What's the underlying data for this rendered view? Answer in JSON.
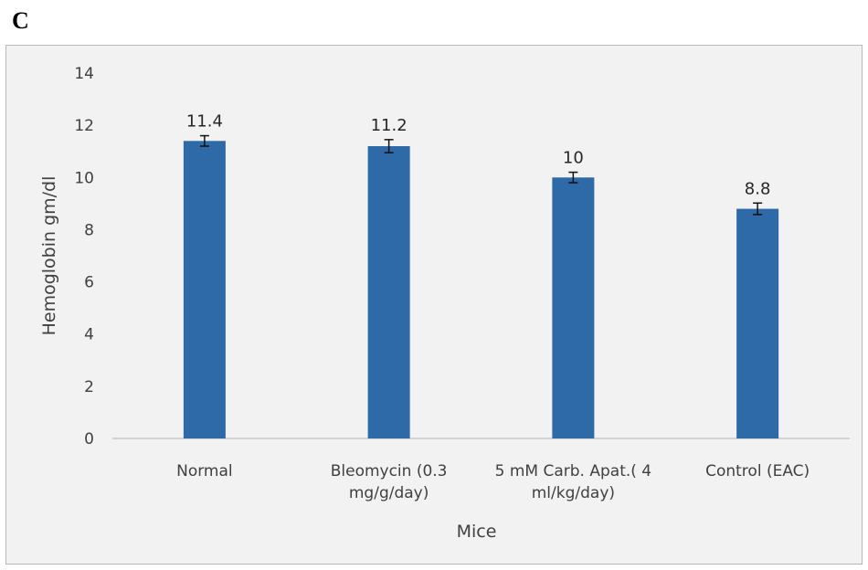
{
  "panel_label": "C",
  "chart_data": {
    "type": "bar",
    "categories": [
      [
        "Normal"
      ],
      [
        "Bleomycin (0.3",
        "mg/g/day)"
      ],
      [
        "5 mM Carb.  Apat.( 4",
        "ml/kg/day)"
      ],
      [
        "Control  (EAC)"
      ]
    ],
    "values": [
      11.4,
      11.2,
      10,
      8.8
    ],
    "data_labels": [
      "11.4",
      "11.2",
      "10",
      "8.8"
    ],
    "error": [
      0.2,
      0.25,
      0.2,
      0.22
    ],
    "xlabel": "Mice",
    "ylabel": "Hemoglobin gm/dl",
    "ylim": [
      0,
      14
    ],
    "yticks": [
      0,
      2,
      4,
      6,
      8,
      10,
      12,
      14
    ],
    "grid": false,
    "bar_color": "#2e6aa8"
  }
}
